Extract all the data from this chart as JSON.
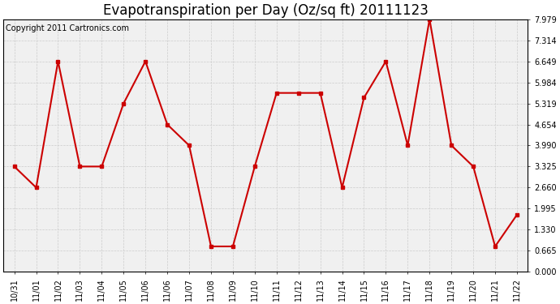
{
  "title": "Evapotranspiration per Day (Oz/sq ft) 20111123",
  "copyright": "Copyright 2011 Cartronics.com",
  "x_labels": [
    "10/31",
    "11/01",
    "11/02",
    "11/03",
    "11/04",
    "11/05",
    "11/06",
    "11/06",
    "11/07",
    "11/08",
    "11/09",
    "11/10",
    "11/11",
    "11/12",
    "11/13",
    "11/14",
    "11/15",
    "11/16",
    "11/17",
    "11/18",
    "11/19",
    "11/20",
    "11/21",
    "11/22"
  ],
  "values": [
    3.325,
    2.66,
    6.649,
    3.325,
    3.325,
    5.319,
    6.649,
    4.654,
    3.99,
    0.8,
    0.8,
    3.325,
    5.65,
    5.65,
    5.65,
    2.66,
    5.5,
    6.649,
    3.99,
    7.979,
    3.99,
    3.325,
    0.8,
    1.8
  ],
  "y_ticks": [
    0.0,
    0.665,
    1.33,
    1.995,
    2.66,
    3.325,
    3.99,
    4.654,
    5.319,
    5.984,
    6.649,
    7.314,
    7.979
  ],
  "line_color": "#cc0000",
  "marker_color": "#cc0000",
  "bg_color": "#ffffff",
  "plot_bg_color": "#f0f0f0",
  "grid_color": "#cccccc",
  "title_fontsize": 12,
  "copyright_fontsize": 7,
  "tick_fontsize": 7
}
